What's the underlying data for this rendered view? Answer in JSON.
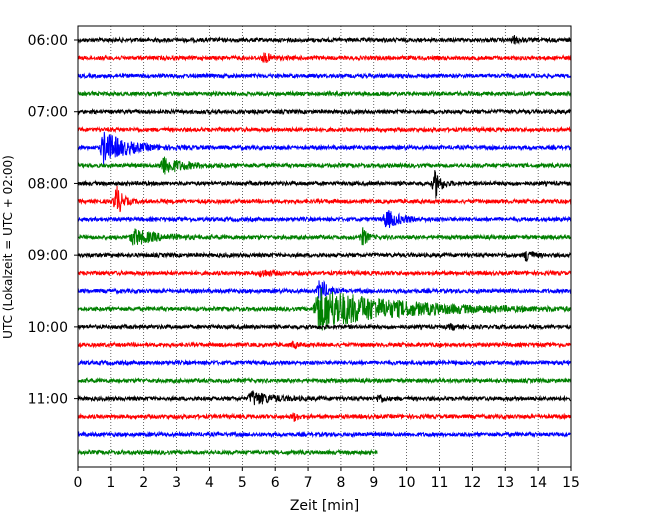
{
  "chart_data": {
    "type": "line",
    "title": "",
    "xlabel": "Zeit  [min]",
    "ylabel": "UTC (Lokalzeit = UTC + 02:00)",
    "xlim": [
      0,
      15
    ],
    "x_ticks": [
      "0",
      "1",
      "2",
      "3",
      "4",
      "5",
      "6",
      "7",
      "8",
      "9",
      "10",
      "11",
      "12",
      "13",
      "14",
      "15"
    ],
    "y_ticks": [
      {
        "label": "06:00",
        "trace": 0
      },
      {
        "label": "07:00",
        "trace": 4
      },
      {
        "label": "08:00",
        "trace": 8
      },
      {
        "label": "09:00",
        "trace": 12
      },
      {
        "label": "10:00",
        "trace": 16
      },
      {
        "label": "11:00",
        "trace": 20
      }
    ],
    "grid": {
      "x": true,
      "style": "dotted"
    },
    "trace_minutes": 15,
    "trace_colors": [
      "#000000",
      "#ff0000",
      "#0000ff",
      "#008000"
    ],
    "traces": [
      {
        "start": "06:00",
        "events": [
          {
            "t": 13.2,
            "a": 0.35,
            "d": 0.4
          }
        ]
      },
      {
        "start": "06:15",
        "events": [
          {
            "t": 5.6,
            "a": 0.5,
            "d": 0.5
          }
        ]
      },
      {
        "start": "06:30",
        "events": []
      },
      {
        "start": "06:45",
        "events": []
      },
      {
        "start": "07:00",
        "events": []
      },
      {
        "start": "07:15",
        "events": []
      },
      {
        "start": "07:30",
        "events": [
          {
            "t": 0.7,
            "a": 1.8,
            "d": 1.6
          }
        ]
      },
      {
        "start": "07:45",
        "events": [
          {
            "t": 2.5,
            "a": 1.0,
            "d": 1.4
          }
        ]
      },
      {
        "start": "08:00",
        "events": [
          {
            "t": 10.8,
            "a": 1.6,
            "d": 0.4
          }
        ]
      },
      {
        "start": "08:15",
        "events": [
          {
            "t": 1.1,
            "a": 1.8,
            "d": 0.4
          }
        ]
      },
      {
        "start": "08:30",
        "events": [
          {
            "t": 9.3,
            "a": 1.0,
            "d": 1.0
          }
        ]
      },
      {
        "start": "08:45",
        "events": [
          {
            "t": 1.6,
            "a": 0.9,
            "d": 1.6
          },
          {
            "t": 8.6,
            "a": 1.0,
            "d": 0.3
          }
        ]
      },
      {
        "start": "09:00",
        "events": [
          {
            "t": 13.6,
            "a": 0.9,
            "d": 0.3
          }
        ]
      },
      {
        "start": "09:15",
        "events": [
          {
            "t": 5.5,
            "a": 0.4,
            "d": 0.7
          }
        ]
      },
      {
        "start": "09:30",
        "events": [
          {
            "t": 7.3,
            "a": 1.6,
            "d": 0.4
          }
        ]
      },
      {
        "start": "09:45",
        "events": [
          {
            "t": 7.2,
            "a": 2.4,
            "d": 5.5
          }
        ]
      },
      {
        "start": "10:00",
        "events": [
          {
            "t": 11.3,
            "a": 0.3,
            "d": 0.3
          }
        ]
      },
      {
        "start": "10:15",
        "events": [
          {
            "t": 6.5,
            "a": 0.3,
            "d": 0.3
          }
        ]
      },
      {
        "start": "10:30",
        "events": []
      },
      {
        "start": "10:45",
        "events": []
      },
      {
        "start": "11:00",
        "events": [
          {
            "t": 5.2,
            "a": 0.8,
            "d": 1.4
          },
          {
            "t": 9.1,
            "a": 0.5,
            "d": 0.3
          }
        ]
      },
      {
        "start": "11:15",
        "events": [
          {
            "t": 6.5,
            "a": 0.4,
            "d": 0.3
          }
        ]
      },
      {
        "start": "11:30",
        "events": []
      },
      {
        "start": "11:45",
        "end_minute": 9.1,
        "events": []
      }
    ]
  }
}
